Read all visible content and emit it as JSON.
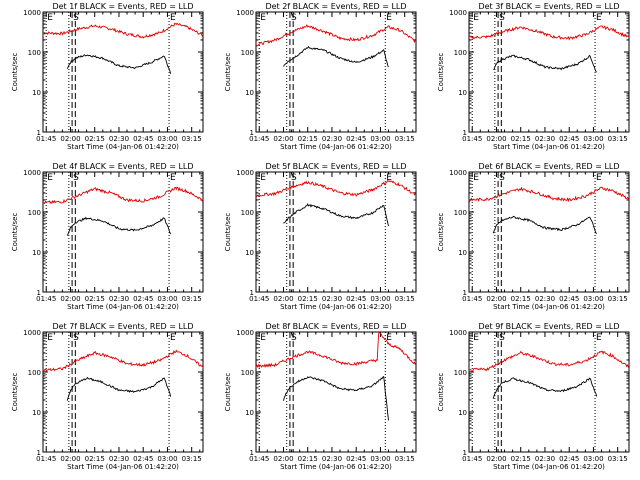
{
  "figure": {
    "colors": {
      "events": "#000000",
      "lld": "#e00000",
      "axes": "#000000"
    },
    "panel_grid": "3x3"
  },
  "chart_data": [
    {
      "type": "line",
      "title": "Det 1f BLACK = Events, RED = LLD",
      "xlabel": "Start Time (04-Jan-06 01:42:20)",
      "ylabel": "Counts/sec",
      "yscale": "log",
      "ylim": [
        1,
        1000
      ],
      "xlim": [
        "01:43",
        "03:22"
      ],
      "x_ticks": [
        "01:45",
        "02:00",
        "02:15",
        "02:30",
        "02:45",
        "03:00",
        "03:15"
      ],
      "y_ticks": [
        "1",
        "10",
        "100",
        "1000"
      ],
      "grid": false,
      "markers": [
        {
          "label": "E",
          "time": "01:45",
          "style": "dotted"
        },
        {
          "label": "",
          "time": "01:59",
          "style": "dotted"
        },
        {
          "label": "S",
          "time": "02:01",
          "style": "dashed"
        },
        {
          "label": "",
          "time": "02:03",
          "style": "dashed"
        },
        {
          "label": "E",
          "time": "03:01",
          "style": "dotted"
        }
      ],
      "series": [
        {
          "name": "LLD",
          "color": "#e00000",
          "x": [
            "01:43",
            "01:55",
            "02:05",
            "02:15",
            "02:25",
            "02:35",
            "02:45",
            "02:55",
            "03:05",
            "03:12",
            "03:22"
          ],
          "y": [
            300,
            290,
            380,
            450,
            380,
            280,
            240,
            300,
            500,
            420,
            260
          ]
        },
        {
          "name": "Events",
          "color": "#000000",
          "x": [
            "01:58",
            "02:00",
            "02:03",
            "02:10",
            "02:20",
            "02:30",
            "02:40",
            "02:50",
            "02:58",
            "03:02"
          ],
          "y": [
            40,
            55,
            70,
            85,
            70,
            45,
            40,
            55,
            80,
            30
          ]
        }
      ]
    },
    {
      "type": "line",
      "title": "Det 2f BLACK = Events, RED = LLD",
      "xlabel": "Start Time (04-Jan-06 01:42:20)",
      "ylabel": "Counts/sec",
      "yscale": "log",
      "ylim": [
        1,
        1000
      ],
      "xlim": [
        "01:43",
        "03:22"
      ],
      "x_ticks": [
        "01:45",
        "02:00",
        "02:15",
        "02:30",
        "02:45",
        "03:00",
        "03:15"
      ],
      "y_ticks": [
        "1",
        "10",
        "100",
        "1000"
      ],
      "grid": false,
      "markers": [
        {
          "label": "E",
          "time": "01:45",
          "style": "dotted"
        },
        {
          "label": "",
          "time": "02:02",
          "style": "dotted"
        },
        {
          "label": "S",
          "time": "02:04",
          "style": "dashed"
        },
        {
          "label": "",
          "time": "02:06",
          "style": "dashed"
        },
        {
          "label": "E",
          "time": "03:03",
          "style": "dotted"
        }
      ],
      "series": [
        {
          "name": "LLD",
          "color": "#e00000",
          "x": [
            "01:43",
            "01:55",
            "02:05",
            "02:15",
            "02:25",
            "02:35",
            "02:45",
            "02:55",
            "03:05",
            "03:12",
            "03:22"
          ],
          "y": [
            150,
            200,
            320,
            450,
            330,
            220,
            200,
            260,
            420,
            350,
            180
          ]
        },
        {
          "name": "Events",
          "color": "#000000",
          "x": [
            "02:00",
            "02:03",
            "02:08",
            "02:15",
            "02:25",
            "02:35",
            "02:45",
            "02:55",
            "03:02",
            "03:05"
          ],
          "y": [
            45,
            60,
            80,
            130,
            110,
            70,
            55,
            75,
            110,
            40
          ]
        }
      ]
    },
    {
      "type": "line",
      "title": "Det 3f BLACK = Events, RED = LLD",
      "xlabel": "Start Time (04-Jan-06 01:42:20)",
      "ylabel": "Counts/sec",
      "yscale": "log",
      "ylim": [
        1,
        1000
      ],
      "xlim": [
        "01:43",
        "03:22"
      ],
      "x_ticks": [
        "01:45",
        "02:00",
        "02:15",
        "02:30",
        "02:45",
        "03:00",
        "03:15"
      ],
      "y_ticks": [
        "1",
        "10",
        "100",
        "1000"
      ],
      "grid": false,
      "markers": [
        {
          "label": "E",
          "time": "01:45",
          "style": "dotted"
        },
        {
          "label": "",
          "time": "01:59",
          "style": "dotted"
        },
        {
          "label": "S",
          "time": "02:01",
          "style": "dashed"
        },
        {
          "label": "",
          "time": "02:03",
          "style": "dashed"
        },
        {
          "label": "E",
          "time": "03:01",
          "style": "dotted"
        }
      ],
      "series": [
        {
          "name": "LLD",
          "color": "#e00000",
          "x": [
            "01:43",
            "01:55",
            "02:05",
            "02:15",
            "02:25",
            "02:35",
            "02:45",
            "02:55",
            "03:05",
            "03:12",
            "03:22"
          ],
          "y": [
            230,
            240,
            330,
            420,
            330,
            240,
            220,
            270,
            430,
            360,
            230
          ]
        },
        {
          "name": "Events",
          "color": "#000000",
          "x": [
            "01:58",
            "02:00",
            "02:03",
            "02:10",
            "02:20",
            "02:30",
            "02:40",
            "02:50",
            "02:58",
            "03:02"
          ],
          "y": [
            35,
            50,
            65,
            80,
            65,
            42,
            38,
            50,
            80,
            30
          ]
        }
      ]
    },
    {
      "type": "line",
      "title": "Det 4f BLACK = Events, RED = LLD",
      "xlabel": "Start Time (04-Jan-06 01:42:20)",
      "ylabel": "Counts/sec",
      "yscale": "log",
      "ylim": [
        1,
        1000
      ],
      "xlim": [
        "01:43",
        "03:22"
      ],
      "x_ticks": [
        "01:45",
        "02:00",
        "02:15",
        "02:30",
        "02:45",
        "03:00",
        "03:15"
      ],
      "y_ticks": [
        "1",
        "10",
        "100",
        "1000"
      ],
      "grid": false,
      "markers": [
        {
          "label": "E",
          "time": "01:45",
          "style": "dotted"
        },
        {
          "label": "",
          "time": "01:59",
          "style": "dotted"
        },
        {
          "label": "S",
          "time": "02:01",
          "style": "dashed"
        },
        {
          "label": "",
          "time": "02:03",
          "style": "dashed"
        },
        {
          "label": "E",
          "time": "03:01",
          "style": "dotted"
        }
      ],
      "series": [
        {
          "name": "LLD",
          "color": "#e00000",
          "x": [
            "01:43",
            "01:55",
            "02:05",
            "02:15",
            "02:25",
            "02:35",
            "02:45",
            "02:55",
            "03:05",
            "03:12",
            "03:22"
          ],
          "y": [
            170,
            180,
            260,
            380,
            300,
            200,
            190,
            240,
            400,
            330,
            200
          ]
        },
        {
          "name": "Events",
          "color": "#000000",
          "x": [
            "01:58",
            "02:00",
            "02:03",
            "02:10",
            "02:20",
            "02:30",
            "02:40",
            "02:50",
            "02:58",
            "03:02"
          ],
          "y": [
            25,
            40,
            55,
            70,
            60,
            38,
            35,
            45,
            70,
            28
          ]
        }
      ]
    },
    {
      "type": "line",
      "title": "Det 5f BLACK = Events, RED = LLD",
      "xlabel": "Start Time (04-Jan-06 01:42:20)",
      "ylabel": "Counts/sec",
      "yscale": "log",
      "ylim": [
        1,
        1000
      ],
      "xlim": [
        "01:43",
        "03:22"
      ],
      "x_ticks": [
        "01:45",
        "02:00",
        "02:15",
        "02:30",
        "02:45",
        "03:00",
        "03:15"
      ],
      "y_ticks": [
        "1",
        "10",
        "100",
        "1000"
      ],
      "grid": false,
      "markers": [
        {
          "label": "E",
          "time": "01:45",
          "style": "dotted"
        },
        {
          "label": "",
          "time": "02:02",
          "style": "dotted"
        },
        {
          "label": "S",
          "time": "02:04",
          "style": "dashed"
        },
        {
          "label": "",
          "time": "02:06",
          "style": "dashed"
        },
        {
          "label": "E",
          "time": "03:03",
          "style": "dotted"
        }
      ],
      "series": [
        {
          "name": "LLD",
          "color": "#e00000",
          "x": [
            "01:43",
            "01:55",
            "02:05",
            "02:15",
            "02:25",
            "02:35",
            "02:45",
            "02:55",
            "03:05",
            "03:12",
            "03:22"
          ],
          "y": [
            260,
            290,
            420,
            560,
            430,
            300,
            270,
            360,
            600,
            480,
            260
          ]
        },
        {
          "name": "Events",
          "color": "#000000",
          "x": [
            "02:00",
            "02:03",
            "02:08",
            "02:15",
            "02:25",
            "02:35",
            "02:45",
            "02:55",
            "03:02",
            "03:05"
          ],
          "y": [
            50,
            70,
            100,
            150,
            120,
            80,
            70,
            95,
            150,
            45
          ]
        }
      ]
    },
    {
      "type": "line",
      "title": "Det 6f BLACK = Events, RED = LLD",
      "xlabel": "Start Time (04-Jan-06 01:42:20)",
      "ylabel": "Counts/sec",
      "yscale": "log",
      "ylim": [
        1,
        1000
      ],
      "xlim": [
        "01:43",
        "03:22"
      ],
      "x_ticks": [
        "01:45",
        "02:00",
        "02:15",
        "02:30",
        "02:45",
        "03:00",
        "03:15"
      ],
      "y_ticks": [
        "1",
        "10",
        "100",
        "1000"
      ],
      "grid": false,
      "markers": [
        {
          "label": "E",
          "time": "01:45",
          "style": "dotted"
        },
        {
          "label": "",
          "time": "01:59",
          "style": "dotted"
        },
        {
          "label": "S",
          "time": "02:01",
          "style": "dashed"
        },
        {
          "label": "",
          "time": "02:03",
          "style": "dashed"
        },
        {
          "label": "E",
          "time": "03:01",
          "style": "dotted"
        }
      ],
      "series": [
        {
          "name": "LLD",
          "color": "#e00000",
          "x": [
            "01:43",
            "01:55",
            "02:05",
            "02:15",
            "02:25",
            "02:35",
            "02:45",
            "02:55",
            "03:05",
            "03:12",
            "03:22"
          ],
          "y": [
            200,
            210,
            290,
            380,
            300,
            220,
            200,
            250,
            400,
            340,
            210
          ]
        },
        {
          "name": "Events",
          "color": "#000000",
          "x": [
            "01:58",
            "02:00",
            "02:03",
            "02:10",
            "02:20",
            "02:30",
            "02:40",
            "02:50",
            "02:58",
            "03:02"
          ],
          "y": [
            30,
            45,
            60,
            75,
            62,
            40,
            36,
            48,
            75,
            28
          ]
        }
      ]
    },
    {
      "type": "line",
      "title": "Det 7f BLACK = Events, RED = LLD",
      "xlabel": "Start Time (04-Jan-06 01:42:20)",
      "ylabel": "Counts/sec",
      "yscale": "log",
      "ylim": [
        1,
        1000
      ],
      "xlim": [
        "01:43",
        "03:22"
      ],
      "x_ticks": [
        "01:45",
        "02:00",
        "02:15",
        "02:30",
        "02:45",
        "03:00",
        "03:15"
      ],
      "y_ticks": [
        "1",
        "10",
        "100",
        "1000"
      ],
      "grid": false,
      "markers": [
        {
          "label": "E",
          "time": "01:45",
          "style": "dotted"
        },
        {
          "label": "",
          "time": "01:59",
          "style": "dotted"
        },
        {
          "label": "S",
          "time": "02:01",
          "style": "dashed"
        },
        {
          "label": "",
          "time": "02:03",
          "style": "dashed"
        },
        {
          "label": "E",
          "time": "03:01",
          "style": "dotted"
        }
      ],
      "series": [
        {
          "name": "LLD",
          "color": "#e00000",
          "x": [
            "01:43",
            "01:55",
            "02:05",
            "02:15",
            "02:25",
            "02:35",
            "02:45",
            "02:55",
            "03:05",
            "03:12",
            "03:22"
          ],
          "y": [
            110,
            120,
            200,
            300,
            240,
            160,
            150,
            190,
            330,
            260,
            130
          ]
        },
        {
          "name": "Events",
          "color": "#000000",
          "x": [
            "01:58",
            "02:00",
            "02:03",
            "02:10",
            "02:20",
            "02:30",
            "02:40",
            "02:50",
            "02:58",
            "03:02"
          ],
          "y": [
            20,
            35,
            50,
            70,
            55,
            35,
            32,
            42,
            70,
            25
          ]
        }
      ]
    },
    {
      "type": "line",
      "title": "Det 8f BLACK = Events, RED = LLD",
      "xlabel": "Start Time (04-Jan-06 01:42:20)",
      "ylabel": "Counts/sec",
      "yscale": "log",
      "ylim": [
        1,
        1000
      ],
      "xlim": [
        "01:43",
        "03:22"
      ],
      "x_ticks": [
        "01:45",
        "02:00",
        "02:15",
        "02:30",
        "02:45",
        "03:00",
        "03:15"
      ],
      "y_ticks": [
        "1",
        "10",
        "100",
        "1000"
      ],
      "grid": false,
      "markers": [
        {
          "label": "E",
          "time": "01:45",
          "style": "dotted"
        },
        {
          "label": "",
          "time": "02:02",
          "style": "dotted"
        },
        {
          "label": "S",
          "time": "02:04",
          "style": "dashed"
        },
        {
          "label": "",
          "time": "02:06",
          "style": "dashed"
        },
        {
          "label": "E",
          "time": "03:03",
          "style": "dotted"
        }
      ],
      "series": [
        {
          "name": "LLD",
          "color": "#e00000",
          "x": [
            "01:43",
            "01:55",
            "02:05",
            "02:15",
            "02:25",
            "02:35",
            "02:45",
            "02:58",
            "02:59",
            "03:05",
            "03:12",
            "03:22"
          ],
          "y": [
            140,
            150,
            230,
            320,
            250,
            170,
            160,
            200,
            1000,
            500,
            380,
            150
          ]
        },
        {
          "name": "Events",
          "color": "#000000",
          "x": [
            "02:00",
            "02:03",
            "02:08",
            "02:15",
            "02:25",
            "02:35",
            "02:45",
            "02:55",
            "03:02",
            "03:05"
          ],
          "y": [
            20,
            38,
            55,
            75,
            60,
            38,
            35,
            45,
            75,
            6
          ]
        }
      ]
    },
    {
      "type": "line",
      "title": "Det 9f BLACK = Events, RED = LLD",
      "xlabel": "Start Time (04-Jan-06 01:42:20)",
      "ylabel": "Counts/sec",
      "yscale": "log",
      "ylim": [
        1,
        1000
      ],
      "xlim": [
        "01:43",
        "03:22"
      ],
      "x_ticks": [
        "01:45",
        "02:00",
        "02:15",
        "02:30",
        "02:45",
        "03:00",
        "03:15"
      ],
      "y_ticks": [
        "1",
        "10",
        "100",
        "1000"
      ],
      "grid": false,
      "markers": [
        {
          "label": "E",
          "time": "01:45",
          "style": "dotted"
        },
        {
          "label": "",
          "time": "01:59",
          "style": "dotted"
        },
        {
          "label": "S",
          "time": "02:01",
          "style": "dashed"
        },
        {
          "label": "",
          "time": "02:03",
          "style": "dashed"
        },
        {
          "label": "E",
          "time": "03:01",
          "style": "dotted"
        }
      ],
      "series": [
        {
          "name": "LLD",
          "color": "#e00000",
          "x": [
            "01:43",
            "01:55",
            "02:05",
            "02:15",
            "02:25",
            "02:35",
            "02:45",
            "02:55",
            "03:05",
            "03:12",
            "03:22"
          ],
          "y": [
            110,
            120,
            200,
            300,
            230,
            160,
            150,
            190,
            320,
            250,
            130
          ]
        },
        {
          "name": "Events",
          "color": "#000000",
          "x": [
            "01:58",
            "02:00",
            "02:03",
            "02:10",
            "02:20",
            "02:30",
            "02:40",
            "02:50",
            "02:58",
            "03:02"
          ],
          "y": [
            22,
            36,
            52,
            68,
            55,
            36,
            33,
            44,
            70,
            24
          ]
        }
      ]
    }
  ]
}
